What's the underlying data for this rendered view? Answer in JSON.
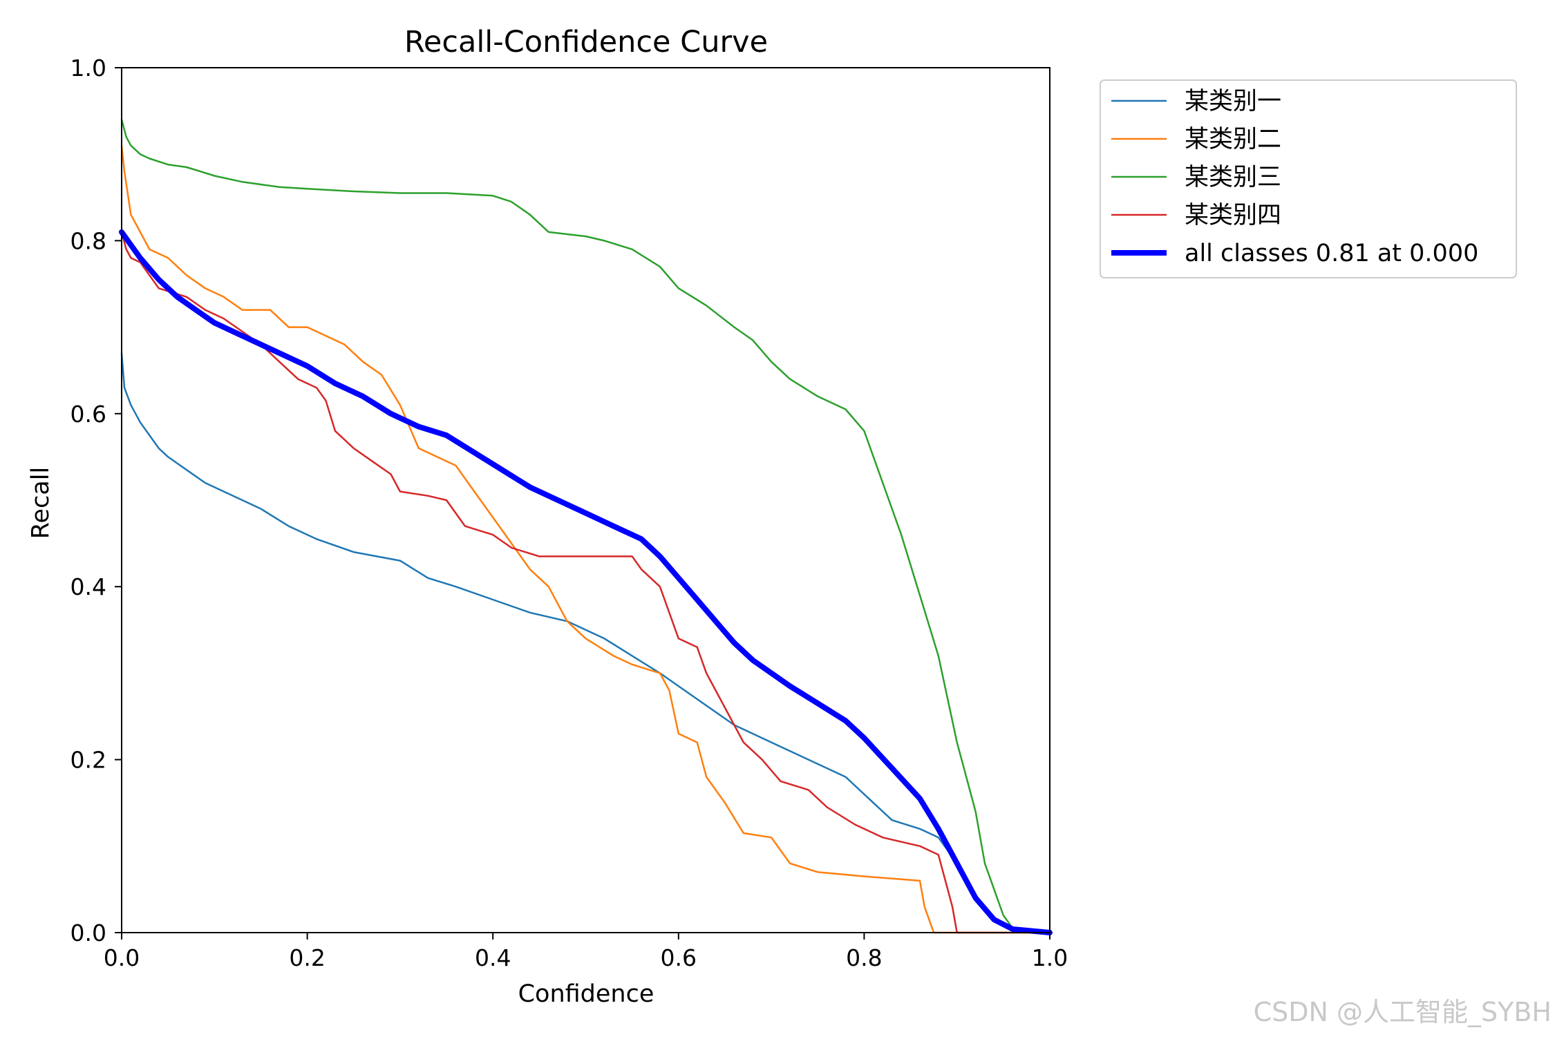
{
  "chart_data": {
    "type": "line",
    "title": "Recall-Confidence Curve",
    "xlabel": "Confidence",
    "ylabel": "Recall",
    "xlim": [
      0.0,
      1.0
    ],
    "ylim": [
      0.0,
      1.0
    ],
    "x_ticks": [
      "0.0",
      "0.2",
      "0.4",
      "0.6",
      "0.8",
      "1.0"
    ],
    "y_ticks": [
      "0.0",
      "0.2",
      "0.4",
      "0.6",
      "0.8",
      "1.0"
    ],
    "grid": false,
    "legend_position": "outside-upper-right",
    "series": [
      {
        "name": "某类别一",
        "color": "#1f77b4",
        "points": [
          [
            0.0,
            0.67
          ],
          [
            0.003,
            0.63
          ],
          [
            0.01,
            0.61
          ],
          [
            0.02,
            0.59
          ],
          [
            0.03,
            0.575
          ],
          [
            0.04,
            0.56
          ],
          [
            0.05,
            0.55
          ],
          [
            0.07,
            0.535
          ],
          [
            0.09,
            0.52
          ],
          [
            0.12,
            0.505
          ],
          [
            0.15,
            0.49
          ],
          [
            0.18,
            0.47
          ],
          [
            0.21,
            0.455
          ],
          [
            0.25,
            0.44
          ],
          [
            0.3,
            0.43
          ],
          [
            0.33,
            0.41
          ],
          [
            0.36,
            0.4
          ],
          [
            0.4,
            0.385
          ],
          [
            0.44,
            0.37
          ],
          [
            0.48,
            0.36
          ],
          [
            0.52,
            0.34
          ],
          [
            0.55,
            0.32
          ],
          [
            0.58,
            0.3
          ],
          [
            0.62,
            0.27
          ],
          [
            0.66,
            0.24
          ],
          [
            0.7,
            0.22
          ],
          [
            0.74,
            0.2
          ],
          [
            0.78,
            0.18
          ],
          [
            0.8,
            0.16
          ],
          [
            0.83,
            0.13
          ],
          [
            0.86,
            0.12
          ],
          [
            0.88,
            0.11
          ],
          [
            0.9,
            0.08
          ],
          [
            0.92,
            0.04
          ],
          [
            0.94,
            0.015
          ],
          [
            0.96,
            0.003
          ],
          [
            1.0,
            0.0
          ]
        ]
      },
      {
        "name": "某类别二",
        "color": "#ff7f0e",
        "points": [
          [
            0.0,
            0.91
          ],
          [
            0.003,
            0.88
          ],
          [
            0.01,
            0.83
          ],
          [
            0.02,
            0.81
          ],
          [
            0.03,
            0.79
          ],
          [
            0.05,
            0.78
          ],
          [
            0.07,
            0.76
          ],
          [
            0.09,
            0.745
          ],
          [
            0.11,
            0.735
          ],
          [
            0.13,
            0.72
          ],
          [
            0.16,
            0.72
          ],
          [
            0.18,
            0.7
          ],
          [
            0.2,
            0.7
          ],
          [
            0.22,
            0.69
          ],
          [
            0.24,
            0.68
          ],
          [
            0.26,
            0.66
          ],
          [
            0.28,
            0.645
          ],
          [
            0.3,
            0.61
          ],
          [
            0.32,
            0.56
          ],
          [
            0.34,
            0.55
          ],
          [
            0.36,
            0.54
          ],
          [
            0.38,
            0.51
          ],
          [
            0.4,
            0.48
          ],
          [
            0.42,
            0.45
          ],
          [
            0.44,
            0.42
          ],
          [
            0.46,
            0.4
          ],
          [
            0.48,
            0.36
          ],
          [
            0.5,
            0.34
          ],
          [
            0.53,
            0.32
          ],
          [
            0.55,
            0.31
          ],
          [
            0.58,
            0.3
          ],
          [
            0.59,
            0.28
          ],
          [
            0.6,
            0.23
          ],
          [
            0.62,
            0.22
          ],
          [
            0.63,
            0.18
          ],
          [
            0.65,
            0.15
          ],
          [
            0.67,
            0.115
          ],
          [
            0.7,
            0.11
          ],
          [
            0.72,
            0.08
          ],
          [
            0.75,
            0.07
          ],
          [
            0.8,
            0.065
          ],
          [
            0.86,
            0.06
          ],
          [
            0.865,
            0.03
          ],
          [
            0.87,
            0.015
          ],
          [
            0.875,
            0.0
          ],
          [
            1.0,
            0.0
          ]
        ]
      },
      {
        "name": "某类别三",
        "color": "#2ca02c",
        "points": [
          [
            0.0,
            0.94
          ],
          [
            0.005,
            0.92
          ],
          [
            0.01,
            0.91
          ],
          [
            0.02,
            0.9
          ],
          [
            0.03,
            0.895
          ],
          [
            0.05,
            0.888
          ],
          [
            0.07,
            0.885
          ],
          [
            0.1,
            0.875
          ],
          [
            0.13,
            0.868
          ],
          [
            0.17,
            0.862
          ],
          [
            0.2,
            0.86
          ],
          [
            0.25,
            0.857
          ],
          [
            0.3,
            0.855
          ],
          [
            0.35,
            0.855
          ],
          [
            0.4,
            0.852
          ],
          [
            0.42,
            0.845
          ],
          [
            0.44,
            0.83
          ],
          [
            0.46,
            0.81
          ],
          [
            0.5,
            0.805
          ],
          [
            0.52,
            0.8
          ],
          [
            0.55,
            0.79
          ],
          [
            0.58,
            0.77
          ],
          [
            0.6,
            0.745
          ],
          [
            0.63,
            0.725
          ],
          [
            0.66,
            0.7
          ],
          [
            0.68,
            0.685
          ],
          [
            0.7,
            0.66
          ],
          [
            0.72,
            0.64
          ],
          [
            0.75,
            0.62
          ],
          [
            0.78,
            0.605
          ],
          [
            0.8,
            0.58
          ],
          [
            0.82,
            0.52
          ],
          [
            0.84,
            0.46
          ],
          [
            0.86,
            0.39
          ],
          [
            0.88,
            0.32
          ],
          [
            0.9,
            0.22
          ],
          [
            0.92,
            0.14
          ],
          [
            0.93,
            0.08
          ],
          [
            0.94,
            0.05
          ],
          [
            0.95,
            0.02
          ],
          [
            0.96,
            0.005
          ],
          [
            1.0,
            0.0
          ]
        ]
      },
      {
        "name": "某类别四",
        "color": "#d62728",
        "points": [
          [
            0.0,
            0.81
          ],
          [
            0.005,
            0.79
          ],
          [
            0.01,
            0.78
          ],
          [
            0.02,
            0.775
          ],
          [
            0.03,
            0.76
          ],
          [
            0.04,
            0.745
          ],
          [
            0.07,
            0.735
          ],
          [
            0.09,
            0.72
          ],
          [
            0.11,
            0.71
          ],
          [
            0.13,
            0.695
          ],
          [
            0.15,
            0.68
          ],
          [
            0.17,
            0.66
          ],
          [
            0.19,
            0.64
          ],
          [
            0.21,
            0.63
          ],
          [
            0.22,
            0.615
          ],
          [
            0.23,
            0.58
          ],
          [
            0.25,
            0.56
          ],
          [
            0.27,
            0.545
          ],
          [
            0.29,
            0.53
          ],
          [
            0.3,
            0.51
          ],
          [
            0.33,
            0.505
          ],
          [
            0.35,
            0.5
          ],
          [
            0.37,
            0.47
          ],
          [
            0.4,
            0.46
          ],
          [
            0.42,
            0.445
          ],
          [
            0.45,
            0.435
          ],
          [
            0.5,
            0.435
          ],
          [
            0.55,
            0.435
          ],
          [
            0.56,
            0.42
          ],
          [
            0.58,
            0.4
          ],
          [
            0.6,
            0.34
          ],
          [
            0.62,
            0.33
          ],
          [
            0.63,
            0.3
          ],
          [
            0.65,
            0.26
          ],
          [
            0.67,
            0.22
          ],
          [
            0.69,
            0.2
          ],
          [
            0.71,
            0.175
          ],
          [
            0.74,
            0.165
          ],
          [
            0.76,
            0.145
          ],
          [
            0.79,
            0.125
          ],
          [
            0.82,
            0.11
          ],
          [
            0.86,
            0.1
          ],
          [
            0.88,
            0.09
          ],
          [
            0.89,
            0.05
          ],
          [
            0.895,
            0.03
          ],
          [
            0.9,
            0.0
          ],
          [
            1.0,
            0.0
          ]
        ]
      },
      {
        "name": "all classes 0.81 at 0.000",
        "color": "#0000ff",
        "linewidth": "thick",
        "points": [
          [
            0.0,
            0.81
          ],
          [
            0.02,
            0.78
          ],
          [
            0.04,
            0.755
          ],
          [
            0.06,
            0.735
          ],
          [
            0.08,
            0.72
          ],
          [
            0.1,
            0.705
          ],
          [
            0.12,
            0.695
          ],
          [
            0.15,
            0.68
          ],
          [
            0.18,
            0.665
          ],
          [
            0.2,
            0.655
          ],
          [
            0.23,
            0.635
          ],
          [
            0.26,
            0.62
          ],
          [
            0.29,
            0.6
          ],
          [
            0.32,
            0.585
          ],
          [
            0.35,
            0.575
          ],
          [
            0.38,
            0.555
          ],
          [
            0.41,
            0.535
          ],
          [
            0.44,
            0.515
          ],
          [
            0.47,
            0.5
          ],
          [
            0.5,
            0.485
          ],
          [
            0.53,
            0.47
          ],
          [
            0.56,
            0.455
          ],
          [
            0.58,
            0.435
          ],
          [
            0.6,
            0.41
          ],
          [
            0.62,
            0.385
          ],
          [
            0.64,
            0.36
          ],
          [
            0.66,
            0.335
          ],
          [
            0.68,
            0.315
          ],
          [
            0.7,
            0.3
          ],
          [
            0.72,
            0.285
          ],
          [
            0.75,
            0.265
          ],
          [
            0.78,
            0.245
          ],
          [
            0.8,
            0.225
          ],
          [
            0.83,
            0.19
          ],
          [
            0.86,
            0.155
          ],
          [
            0.88,
            0.12
          ],
          [
            0.9,
            0.08
          ],
          [
            0.92,
            0.04
          ],
          [
            0.94,
            0.015
          ],
          [
            0.96,
            0.004
          ],
          [
            1.0,
            0.0
          ]
        ]
      }
    ],
    "watermark": "CSDN @人工智能_SYBH"
  }
}
